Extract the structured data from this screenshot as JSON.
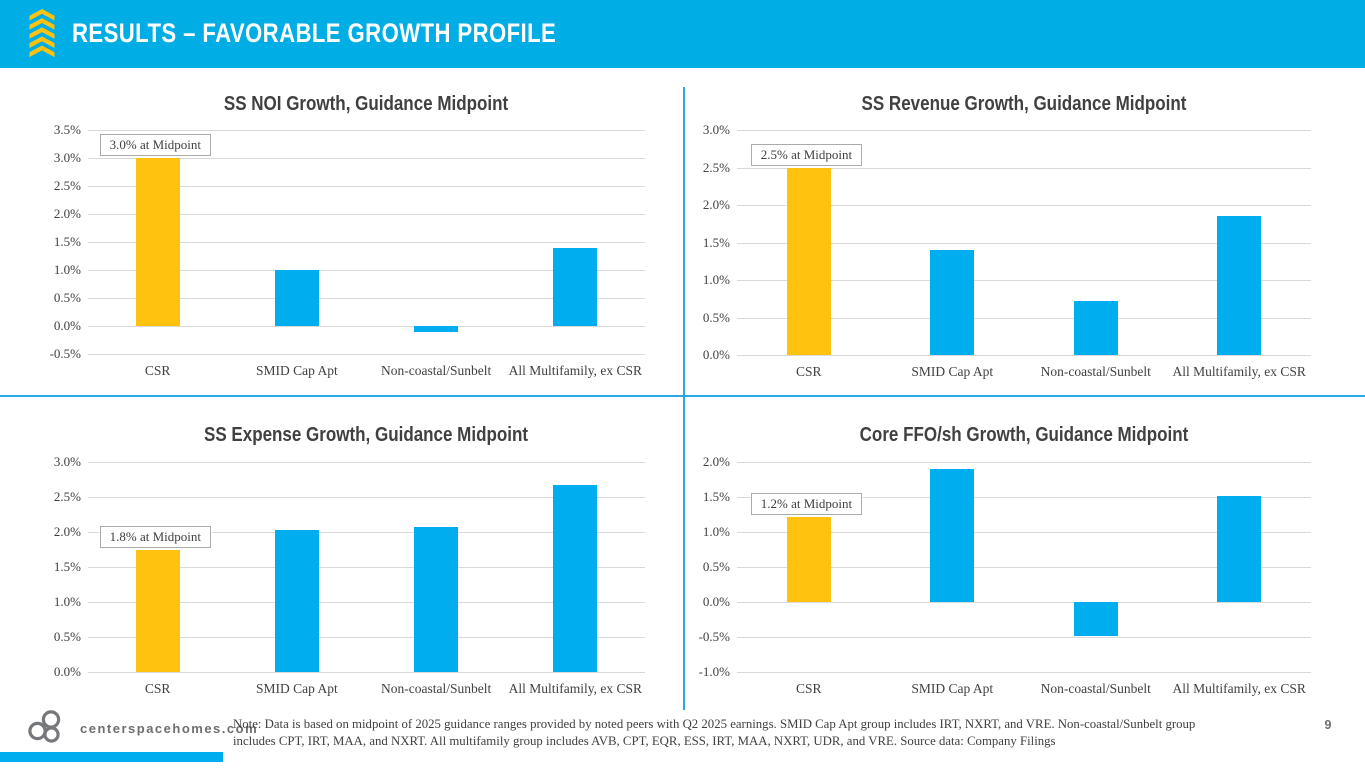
{
  "header": {
    "title": "RESULTS – FAVORABLE GROWTH PROFILE"
  },
  "colors": {
    "header_bg": "#00AEE5",
    "accent_yellow": "#FFC20E",
    "bar_blue": "#00AEEF",
    "divider_cyan": "#29ABE2",
    "gridline_gray": "#D9D9D9",
    "text_dark": "#404040",
    "footer_gray": "#6d6e71"
  },
  "chart_data": [
    {
      "type": "bar",
      "title": "SS NOI Growth, Guidance Midpoint",
      "categories": [
        "CSR",
        "SMID Cap Apt",
        "Non-coastal/Sunbelt",
        "All Multifamily, ex CSR"
      ],
      "values": [
        3.0,
        1.0,
        -0.1,
        1.4
      ],
      "bar_colors": [
        "#FFC20E",
        "#00AEEF",
        "#00AEEF",
        "#00AEEF"
      ],
      "annotation": "3.0% at Midpoint",
      "annotation_bar_index": 0,
      "ylim": [
        -0.5,
        3.5
      ],
      "ytick_labels": [
        "3.5%",
        "3.0%",
        "2.5%",
        "2.0%",
        "1.5%",
        "1.0%",
        "0.5%",
        "0.0%",
        "-0.5%"
      ],
      "ytick_values": [
        3.5,
        3.0,
        2.5,
        2.0,
        1.5,
        1.0,
        0.5,
        0.0,
        -0.5
      ],
      "grid": true,
      "legend": false
    },
    {
      "type": "bar",
      "title": "SS Revenue Growth, Guidance Midpoint",
      "categories": [
        "CSR",
        "SMID Cap Apt",
        "Non-coastal/Sunbelt",
        "All Multifamily, ex CSR"
      ],
      "values": [
        2.5,
        1.4,
        0.72,
        1.85
      ],
      "bar_colors": [
        "#FFC20E",
        "#00AEEF",
        "#00AEEF",
        "#00AEEF"
      ],
      "annotation": "2.5% at Midpoint",
      "annotation_bar_index": 0,
      "ylim": [
        0.0,
        3.0
      ],
      "ytick_labels": [
        "3.0%",
        "2.5%",
        "2.0%",
        "1.5%",
        "1.0%",
        "0.5%",
        "0.0%"
      ],
      "ytick_values": [
        3.0,
        2.5,
        2.0,
        1.5,
        1.0,
        0.5,
        0.0
      ],
      "grid": true,
      "legend": false
    },
    {
      "type": "bar",
      "title": "SS Expense Growth, Guidance Midpoint",
      "categories": [
        "CSR",
        "SMID Cap Apt",
        "Non-coastal/Sunbelt",
        "All Multifamily, ex CSR"
      ],
      "values": [
        1.75,
        2.03,
        2.07,
        2.67
      ],
      "bar_colors": [
        "#FFC20E",
        "#00AEEF",
        "#00AEEF",
        "#00AEEF"
      ],
      "annotation": "1.8% at Midpoint",
      "annotation_bar_index": 0,
      "ylim": [
        0.0,
        3.0
      ],
      "ytick_labels": [
        "3.0%",
        "2.5%",
        "2.0%",
        "1.5%",
        "1.0%",
        "0.5%",
        "0.0%"
      ],
      "ytick_values": [
        3.0,
        2.5,
        2.0,
        1.5,
        1.0,
        0.5,
        0.0
      ],
      "grid": true,
      "legend": false
    },
    {
      "type": "bar",
      "title": "Core FFO/sh Growth, Guidance Midpoint",
      "categories": [
        "CSR",
        "SMID Cap Apt",
        "Non-coastal/Sunbelt",
        "All Multifamily, ex CSR"
      ],
      "values": [
        1.22,
        1.9,
        -0.48,
        1.52
      ],
      "bar_colors": [
        "#FFC20E",
        "#00AEEF",
        "#00AEEF",
        "#00AEEF"
      ],
      "annotation": "1.2% at Midpoint",
      "annotation_bar_index": 0,
      "ylim": [
        -1.0,
        2.0
      ],
      "ytick_labels": [
        "2.0%",
        "1.5%",
        "1.0%",
        "0.5%",
        "0.0%",
        "-0.5%",
        "-1.0%"
      ],
      "ytick_values": [
        2.0,
        1.5,
        1.0,
        0.5,
        0.0,
        -0.5,
        -1.0
      ],
      "grid": true,
      "legend": false
    }
  ],
  "footer": {
    "website": "centerspacehomes.com",
    "note": "Note: Data is based on midpoint of 2025 guidance ranges provided by noted peers with Q2 2025 earnings. SMID Cap Apt group includes IRT, NXRT, and VRE. Non-coastal/Sunbelt group includes CPT, IRT, MAA, and NXRT. All multifamily group includes AVB, CPT, EQR, ESS, IRT, MAA, NXRT, UDR, and VRE. Source data: Company Filings",
    "page_number": "9"
  }
}
